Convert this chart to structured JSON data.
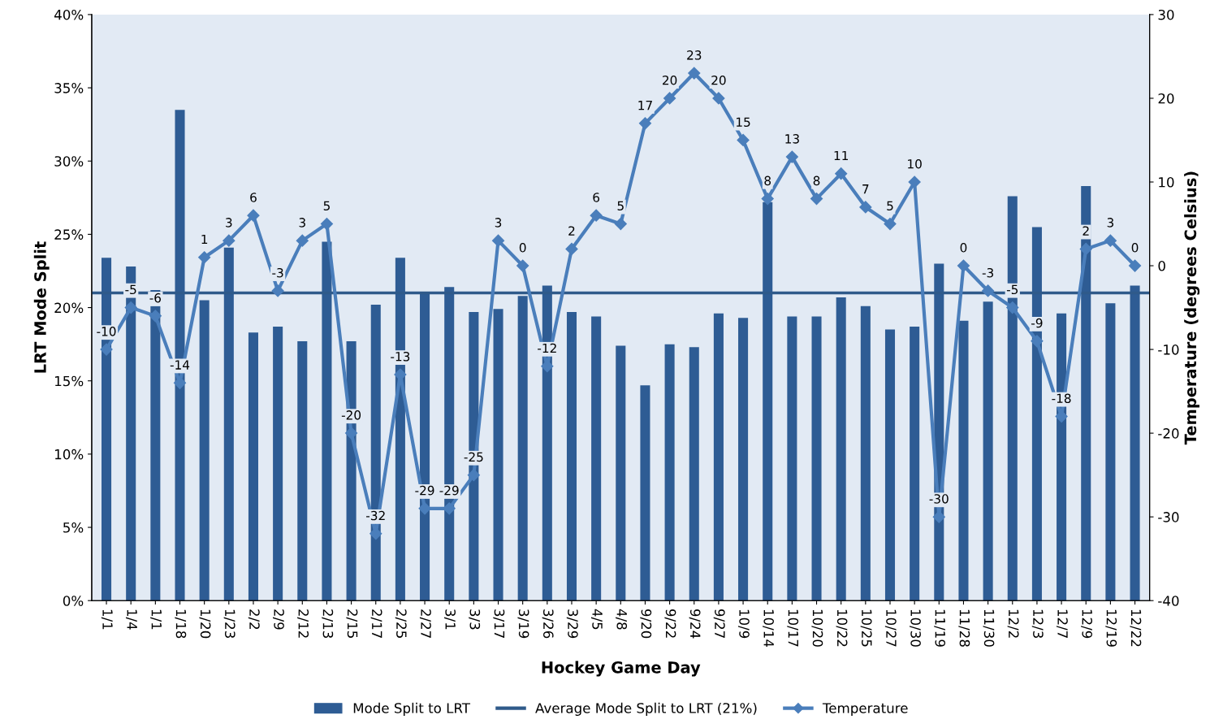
{
  "chart_data": {
    "type": "bar",
    "xlabel": "Hockey Game Day",
    "ylabel": "LRT Mode Split",
    "y2label": "Temperature (degrees Celsius)",
    "categories": [
      "1/1",
      "1/4",
      "1/1",
      "1/18",
      "1/20",
      "1/23",
      "2/2",
      "2/9",
      "2/12",
      "2/13",
      "2/15",
      "2/17",
      "2/25",
      "2/27",
      "3/1",
      "3/3",
      "3/17",
      "3/19",
      "3/26",
      "3/29",
      "4/5",
      "4/8",
      "9/20",
      "9/22",
      "9/24",
      "9/27",
      "10/9",
      "10/14",
      "10/17",
      "10/20",
      "10/22",
      "10/25",
      "10/27",
      "10/30",
      "11/19",
      "11/28",
      "11/30",
      "12/2",
      "12/3",
      "12/7",
      "12/9",
      "12/19",
      "12/22"
    ],
    "series": [
      {
        "name": "Mode Split to LRT",
        "color": "#2e5c94",
        "values": [
          23.4,
          22.8,
          21.2,
          33.5,
          20.5,
          24.1,
          18.3,
          18.7,
          17.7,
          24.5,
          17.7,
          20.2,
          23.4,
          21.0,
          21.4,
          19.7,
          19.9,
          20.8,
          21.5,
          19.7,
          19.4,
          17.4,
          14.7,
          17.5,
          17.3,
          19.6,
          19.3,
          27.2,
          19.4,
          19.4,
          20.7,
          20.1,
          18.5,
          18.7,
          23.0,
          19.1,
          20.4,
          27.6,
          25.5,
          19.6,
          28.3,
          20.3,
          21.5
        ]
      },
      {
        "name": "Temperature",
        "type": "line",
        "axis": "y2",
        "color": "#4a7ebb",
        "marker": "diamond",
        "values": [
          -10,
          -5,
          -6,
          -14,
          1,
          3,
          6,
          -3,
          3,
          5,
          -20,
          -32,
          -13,
          -29,
          -29,
          -25,
          3,
          0,
          -12,
          2,
          6,
          5,
          17,
          20,
          23,
          20,
          15,
          8,
          13,
          8,
          11,
          7,
          5,
          10,
          -30,
          0,
          -3,
          -5,
          -9,
          -18,
          2,
          3,
          0
        ],
        "value_labels": [
          "-10",
          "-5",
          "-6",
          "-14",
          "1",
          "3",
          "6",
          "-3",
          "3",
          "5",
          "-20",
          "-32",
          "-13",
          "-29",
          "-29",
          "-25",
          "3",
          "0",
          "-12",
          "2",
          "6",
          "5",
          "17",
          "20",
          "23",
          "20",
          "15",
          "8",
          "13",
          "8",
          "11",
          "7",
          "5",
          "10",
          "-30",
          "0",
          "-3",
          "-5",
          "-9",
          "-18",
          "2",
          "3",
          "0"
        ]
      }
    ],
    "ref_lines": [
      {
        "axis": "y",
        "value": 21,
        "label": "Average Mode Split to LRT (21%)",
        "color": "#2f5a8a"
      }
    ],
    "ylim": [
      0,
      40
    ],
    "yticks": [
      {
        "value": 0,
        "label": "0%"
      },
      {
        "value": 5,
        "label": "5%"
      },
      {
        "value": 10,
        "label": "10%"
      },
      {
        "value": 15,
        "label": "15%"
      },
      {
        "value": 20,
        "label": "20%"
      },
      {
        "value": 25,
        "label": "25%"
      },
      {
        "value": 30,
        "label": "30%"
      },
      {
        "value": 35,
        "label": "35%"
      },
      {
        "value": 40,
        "label": "40%"
      }
    ],
    "y2lim": [
      -40,
      30
    ],
    "y2ticks": [
      -40,
      -30,
      -20,
      -10,
      0,
      10,
      20,
      30
    ],
    "grid": false,
    "legend": "bottom"
  }
}
